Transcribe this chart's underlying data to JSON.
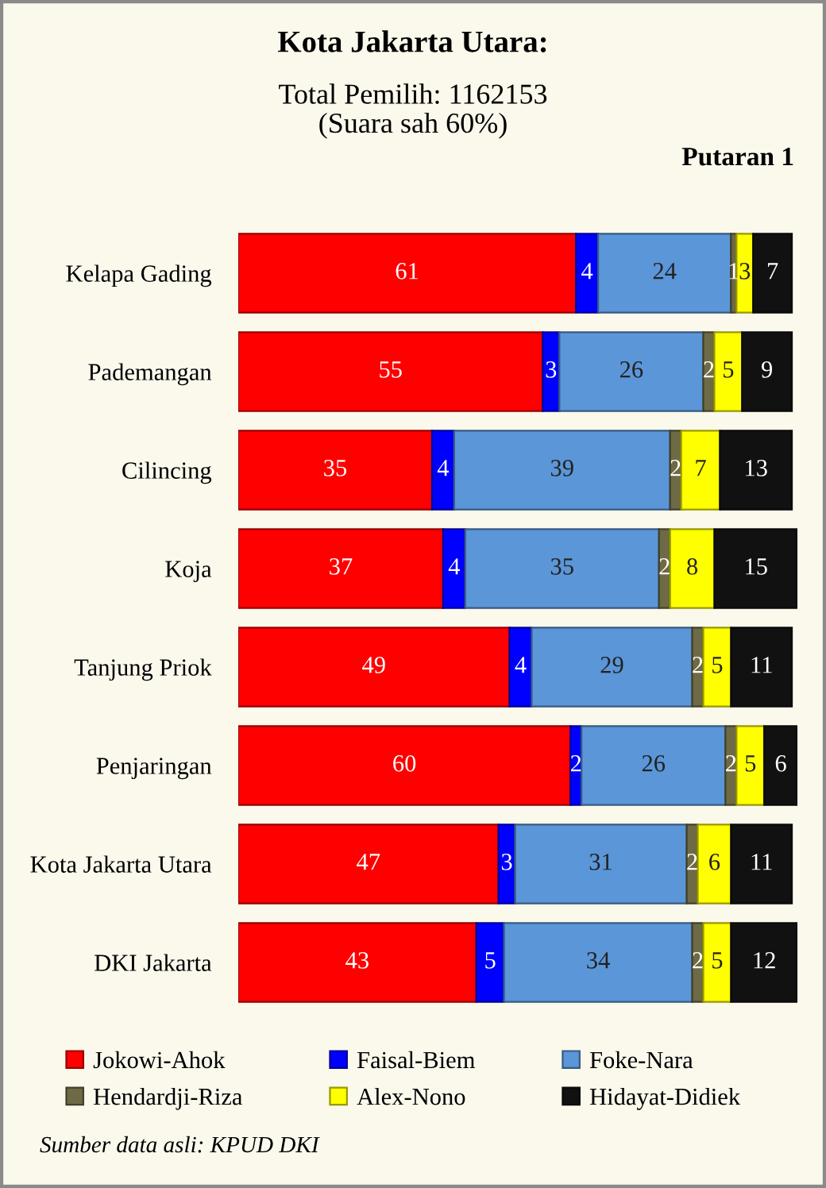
{
  "chart_data": {
    "type": "bar",
    "orientation": "horizontal",
    "stacked": true,
    "title": "Kota Jakarta Utara:",
    "subtitle": "Total Pemilih: 1162153\n(Suara sah 60%)",
    "categories": [
      "Kelapa Gading",
      "Pademangan",
      "Cilincing",
      "Koja",
      "Tanjung Priok",
      "Penjaringan",
      "Kota Jakarta Utara",
      "DKI Jakarta"
    ],
    "series": [
      {
        "name": "Jokowi-Ahok",
        "color": "#ff0000",
        "values": [
          61,
          55,
          35,
          37,
          49,
          60,
          47,
          43
        ]
      },
      {
        "name": "Faisal-Biem",
        "color": "#0000ff",
        "values": [
          4,
          3,
          4,
          4,
          4,
          2,
          3,
          5
        ]
      },
      {
        "name": "Foke-Nara",
        "color": "#5b96d8",
        "values": [
          24,
          26,
          39,
          35,
          29,
          26,
          31,
          34
        ]
      },
      {
        "name": "Hendardji-Riza",
        "color": "#6e6a45",
        "values": [
          1,
          2,
          2,
          2,
          2,
          2,
          2,
          2
        ]
      },
      {
        "name": "Alex-Nono",
        "color": "#ffff00",
        "values": [
          3,
          5,
          7,
          8,
          5,
          5,
          6,
          5
        ]
      },
      {
        "name": "Hidayat-Didiek",
        "color": "#111111",
        "values": [
          7,
          9,
          13,
          15,
          11,
          6,
          11,
          12
        ]
      }
    ],
    "xlim": [
      0,
      101
    ],
    "tick_labels": "y",
    "data_labels": true,
    "legend": "bottom",
    "annotations": [
      "Putaran 1",
      "Sumber data asli: KPUD DKI"
    ]
  }
}
